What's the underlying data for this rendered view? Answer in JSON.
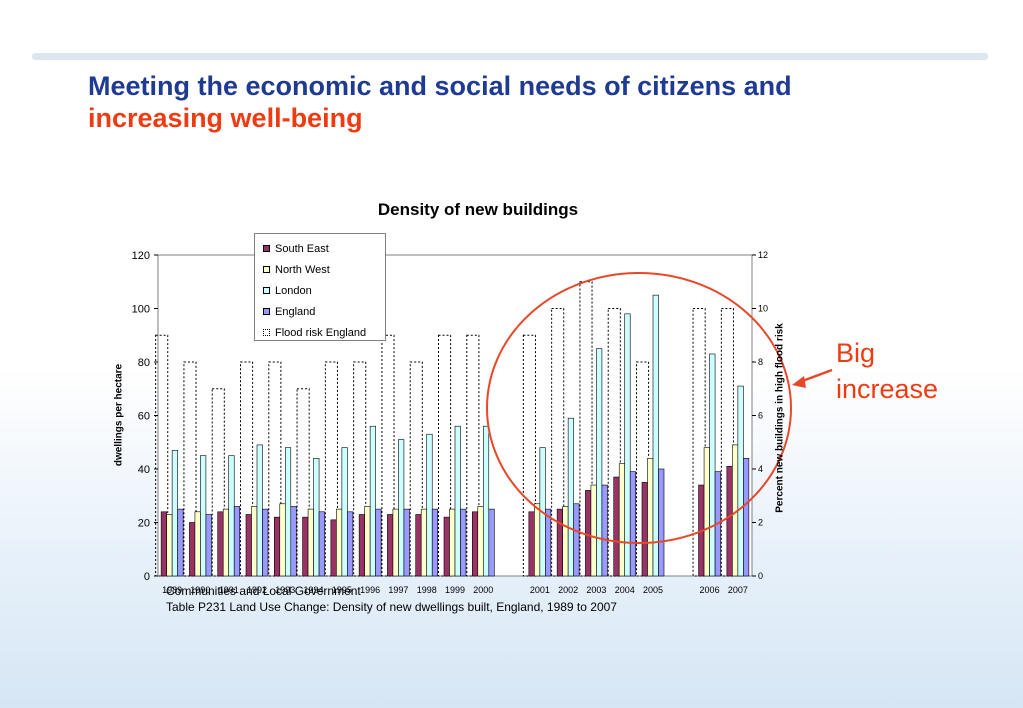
{
  "slide": {
    "title_line1": "Meeting the economic and social needs of citizens and",
    "title_line2": "increasing well-being",
    "annotation_line1": "Big",
    "annotation_line2": "increase",
    "source_line1": "Communities and Local Government",
    "source_line2": "Table P231 Land Use Change: Density of new dwellings built, England, 1989 to 2007"
  },
  "colors": {
    "title_blue": "#1f3a93",
    "title_red": "#ef3b12",
    "annotation": "#ef3b12",
    "circle": "#e8482a",
    "south_east": "#993366",
    "north_west": "#ffffcc",
    "london": "#ccffff",
    "england": "#9999ff"
  },
  "chart_data": {
    "type": "bar",
    "title": "Density of new buildings",
    "ylabel": "dwellings per hectare",
    "ylabel_right": "Percent new buildings in high flood risk",
    "ylim": [
      0,
      120
    ],
    "ylim_right": [
      0,
      12
    ],
    "yticks": [
      "0",
      "20",
      "40",
      "60",
      "80",
      "100",
      "120"
    ],
    "yticks_right": [
      "0",
      "2",
      "4",
      "6",
      "8",
      "10",
      "12"
    ],
    "legend_position": "top-left",
    "categories": [
      "1989",
      "1990",
      "1991",
      "1992",
      "1993",
      "1994",
      "1995",
      "1996",
      "1997",
      "1998",
      "1999",
      "2000",
      "2001",
      "2002",
      "2003",
      "2004",
      "2005",
      "2006",
      "2007"
    ],
    "x_labels": [
      "1989",
      "1990",
      "1991",
      "1992",
      "1993",
      "1994",
      "1995",
      "1996",
      "1997",
      "1998",
      "1999",
      "2000",
      "",
      "2001",
      "2002",
      "2003",
      "2004",
      "2005",
      "",
      "2006",
      "2007"
    ],
    "series": [
      {
        "name": "South East",
        "axis": "left",
        "values": [
          24,
          20,
          24,
          23,
          22,
          22,
          21,
          23,
          23,
          23,
          22,
          24,
          24,
          25,
          32,
          37,
          35,
          34,
          41
        ]
      },
      {
        "name": "North West",
        "axis": "left",
        "values": [
          23,
          24,
          25,
          26,
          27,
          25,
          25,
          26,
          25,
          25,
          25,
          26,
          27,
          26,
          34,
          42,
          44,
          48,
          49
        ]
      },
      {
        "name": "London",
        "axis": "left",
        "values": [
          47,
          45,
          45,
          49,
          48,
          44,
          48,
          56,
          51,
          53,
          56,
          56,
          48,
          59,
          85,
          98,
          105,
          83,
          71
        ]
      },
      {
        "name": "England",
        "axis": "left",
        "values": [
          25,
          23,
          26,
          25,
          26,
          24,
          24,
          25,
          25,
          25,
          25,
          25,
          25,
          27,
          34,
          39,
          40,
          39,
          44
        ]
      },
      {
        "name": "Flood risk England",
        "axis": "right",
        "values": [
          9,
          8,
          7,
          8,
          8,
          7,
          8,
          8,
          9,
          8,
          9,
          9,
          9,
          10,
          11,
          10,
          8,
          10,
          10
        ]
      }
    ]
  }
}
